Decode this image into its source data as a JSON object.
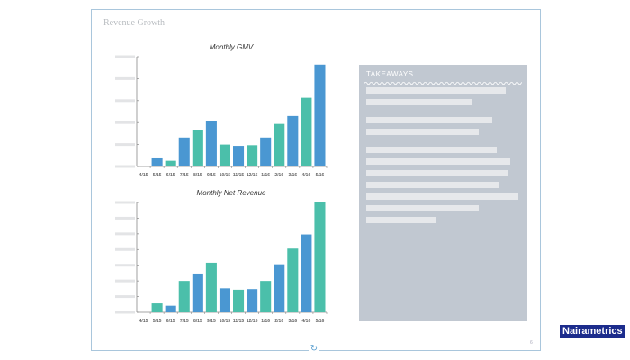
{
  "slide": {
    "title": "Revenue Growth",
    "page_number": "6"
  },
  "takeaways": {
    "heading": "TAKEAWAYS"
  },
  "brand": "Nairametrics",
  "colors": {
    "blue": "#4a97d2",
    "teal": "#4bbfaa"
  },
  "chart_data": [
    {
      "type": "bar",
      "title": "Monthly GMV",
      "categories": [
        "4/15",
        "5/15",
        "6/15",
        "7/15",
        "8/15",
        "9/15",
        "10/15",
        "11/15",
        "12/15",
        "1/16",
        "2/16",
        "3/16",
        "4/16",
        "5/16"
      ],
      "values": [
        0,
        0.37,
        0.26,
        1.32,
        1.65,
        2.09,
        1.0,
        0.94,
        0.97,
        1.32,
        1.94,
        2.3,
        3.13,
        4.64
      ],
      "bar_colors": [
        "blue",
        "blue",
        "teal",
        "blue",
        "teal",
        "blue",
        "teal",
        "blue",
        "teal",
        "blue",
        "teal",
        "blue",
        "teal",
        "blue"
      ],
      "ylim": [
        0,
        5
      ],
      "yticks": 6,
      "xlabel": "",
      "ylabel": ""
    },
    {
      "type": "bar",
      "title": "Monthly Net Revenue",
      "categories": [
        "4/15",
        "5/15",
        "6/15",
        "7/15",
        "8/15",
        "9/15",
        "10/15",
        "11/15",
        "12/15",
        "1/16",
        "2/16",
        "3/16",
        "4/16",
        "5/16"
      ],
      "values": [
        0,
        0.57,
        0.42,
        2.0,
        2.47,
        3.16,
        1.53,
        1.44,
        1.48,
        2.0,
        3.06,
        4.06,
        4.96,
        7.0
      ],
      "bar_colors": [
        "teal",
        "teal",
        "blue",
        "teal",
        "blue",
        "teal",
        "blue",
        "teal",
        "blue",
        "teal",
        "blue",
        "teal",
        "blue",
        "teal"
      ],
      "ylim": [
        0,
        7
      ],
      "yticks": 8,
      "xlabel": "",
      "ylabel": ""
    }
  ]
}
